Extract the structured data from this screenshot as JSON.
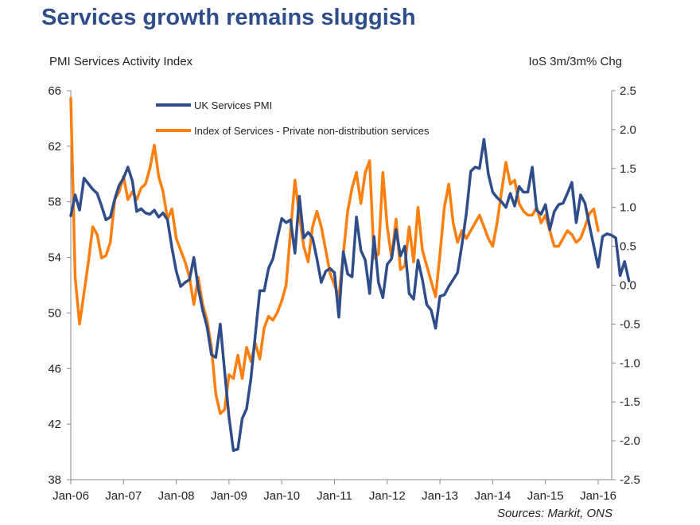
{
  "title": "Services growth remains sluggish",
  "source": "Sources: Markit, ONS",
  "chart_data": {
    "type": "line",
    "title": "Services growth remains sluggish",
    "y_left_label": "PMI Services Activity Index",
    "y_right_label": "IoS 3m/3m% Chg",
    "y_left_lim": [
      38,
      66
    ],
    "y_left_ticks": [
      "66",
      "62",
      "58",
      "54",
      "50",
      "46",
      "42",
      "38"
    ],
    "y_right_lim": [
      -2.5,
      2.5
    ],
    "y_right_ticks": [
      "2.5",
      "2.0",
      "1.5",
      "1.0",
      "0.5",
      "0.0",
      "-0.5",
      "-1.0",
      "-1.5",
      "-2.0",
      "-2.5"
    ],
    "x_start": "Jan-06",
    "x_ticks": [
      "Jan-06",
      "Jan-07",
      "Jan-08",
      "Jan-09",
      "Jan-10",
      "Jan-11",
      "Jan-12",
      "Jan-13",
      "Jan-14",
      "Jan-15",
      "Jan-16"
    ],
    "legend_position": "top-left",
    "grid": false,
    "colors": {
      "pmi": "#2e4d8a",
      "ios": "#ff7f0e",
      "title": "#2e4d8a"
    },
    "series": [
      {
        "name": "UK Services PMI",
        "axis": "left",
        "values": [
          57.0,
          58.5,
          57.4,
          59.7,
          59.3,
          58.9,
          58.6,
          57.7,
          56.7,
          56.9,
          58.2,
          59.2,
          59.7,
          60.5,
          59.5,
          57.3,
          57.5,
          57.2,
          57.1,
          57.4,
          56.9,
          57.2,
          56.7,
          54.7,
          53.0,
          51.9,
          52.2,
          52.4,
          54.0,
          51.8,
          50.2,
          49.0,
          47.0,
          46.8,
          49.2,
          45.8,
          42.5,
          40.1,
          40.2,
          42.4,
          43.1,
          45.3,
          48.5,
          51.6,
          51.6,
          53.2,
          53.9,
          55.4,
          56.8,
          56.5,
          56.7,
          54.3,
          58.4,
          55.4,
          55.8,
          55.4,
          53.9,
          52.2,
          53.0,
          53.2,
          52.9,
          49.7,
          54.4,
          52.8,
          52.6,
          56.9,
          54.5,
          53.8,
          51.4,
          55.5,
          52.2,
          51.1,
          53.5,
          53.9,
          56.0,
          54.1,
          54.8,
          51.4,
          51.0,
          53.8,
          52.4,
          50.6,
          50.2,
          48.9,
          51.2,
          51.3,
          51.9,
          52.4,
          52.9,
          54.9,
          57.2,
          60.2,
          60.5,
          60.4,
          62.5,
          60.0,
          58.7,
          58.3,
          58.0,
          57.6,
          58.6,
          57.7,
          59.1,
          58.7,
          58.7,
          60.5,
          57.4,
          57.1,
          57.8,
          56.0,
          57.3,
          57.8,
          57.9,
          58.6,
          59.4,
          56.5,
          58.5,
          57.9,
          56.3,
          54.8,
          53.3,
          55.5,
          55.7,
          55.6,
          55.4,
          52.7,
          53.7,
          52.3
        ]
      },
      {
        "name": "Index of Services - Private non-distribution services",
        "axis": "right",
        "values": [
          2.4,
          0.1,
          -0.5,
          -0.1,
          0.3,
          0.75,
          0.65,
          0.35,
          0.38,
          0.55,
          1.1,
          1.2,
          1.4,
          1.1,
          1.2,
          1.1,
          1.25,
          1.3,
          1.5,
          1.8,
          1.4,
          1.2,
          0.85,
          0.98,
          0.6,
          0.45,
          0.3,
          0.1,
          -0.25,
          0.1,
          -0.25,
          -0.45,
          -0.8,
          -1.4,
          -1.65,
          -1.6,
          -1.15,
          -1.2,
          -0.9,
          -1.2,
          -0.8,
          -0.98,
          -0.75,
          -0.95,
          -0.55,
          -0.4,
          -0.45,
          -0.35,
          -0.2,
          0.0,
          0.7,
          1.35,
          0.9,
          0.5,
          0.3,
          0.75,
          0.95,
          0.75,
          0.45,
          0.15,
          0.0,
          -0.15,
          0.4,
          0.95,
          1.25,
          1.45,
          1.05,
          1.45,
          1.6,
          0.35,
          0.4,
          1.45,
          0.75,
          0.35,
          0.85,
          0.2,
          0.25,
          0.75,
          0.3,
          1.0,
          0.45,
          0.25,
          0.05,
          -0.15,
          0.4,
          1.0,
          1.3,
          0.8,
          0.55,
          0.7,
          0.6,
          0.7,
          0.8,
          0.9,
          0.75,
          0.6,
          0.5,
          0.8,
          1.2,
          1.58,
          1.3,
          1.35,
          1.05,
          0.95,
          0.9,
          0.9,
          1.0,
          0.8,
          0.9,
          0.7,
          0.5,
          0.5,
          0.6,
          0.7,
          0.65,
          0.55,
          0.6,
          0.75,
          0.92,
          0.98,
          0.7
        ]
      }
    ]
  }
}
